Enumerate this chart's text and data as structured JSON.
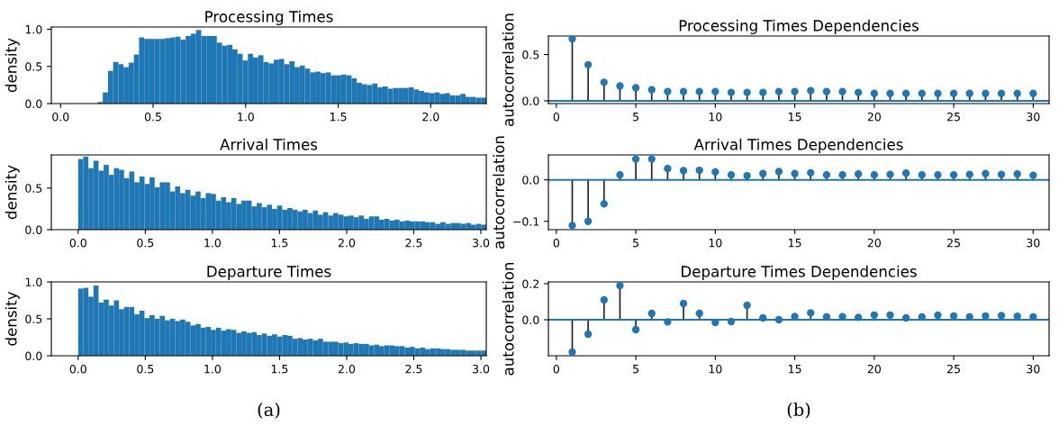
{
  "chart_data": [
    {
      "type": "histogram",
      "title": "Processing Times",
      "ylabel": "density",
      "color": "#1f77b4",
      "annotations": [
        "(a)"
      ],
      "bins": [
        0.2,
        0.228,
        0.256,
        0.284,
        0.312,
        0.34,
        0.368,
        0.396,
        0.424,
        0.452,
        0.48,
        0.508,
        0.536,
        0.564,
        0.592,
        0.62,
        0.648,
        0.676,
        0.704,
        0.732,
        0.76,
        0.788,
        0.816,
        0.844,
        0.872,
        0.9,
        0.928,
        0.956,
        0.984,
        1.012,
        1.04,
        1.068,
        1.096,
        1.124,
        1.152,
        1.18,
        1.208,
        1.236,
        1.264,
        1.292,
        1.32,
        1.348,
        1.376,
        1.404,
        1.432,
        1.46,
        1.488,
        1.516,
        1.544,
        1.572,
        1.6,
        1.628,
        1.656,
        1.684,
        1.712,
        1.74,
        1.768,
        1.796,
        1.824,
        1.852,
        1.88,
        1.908,
        1.936,
        1.964,
        1.992,
        2.02,
        2.048,
        2.076,
        2.104,
        2.132,
        2.16,
        2.188,
        2.216,
        2.244,
        2.272,
        2.3
      ],
      "values": [
        0.02,
        0.15,
        0.44,
        0.56,
        0.53,
        0.49,
        0.55,
        0.66,
        0.89,
        0.87,
        0.87,
        0.87,
        0.87,
        0.88,
        0.89,
        0.9,
        0.86,
        0.91,
        0.94,
        0.99,
        0.91,
        0.91,
        0.91,
        0.82,
        0.78,
        0.79,
        0.73,
        0.67,
        0.58,
        0.67,
        0.62,
        0.65,
        0.56,
        0.54,
        0.59,
        0.6,
        0.53,
        0.57,
        0.49,
        0.51,
        0.47,
        0.42,
        0.43,
        0.41,
        0.42,
        0.38,
        0.38,
        0.39,
        0.38,
        0.34,
        0.28,
        0.26,
        0.25,
        0.27,
        0.22,
        0.23,
        0.2,
        0.21,
        0.21,
        0.21,
        0.22,
        0.19,
        0.17,
        0.15,
        0.14,
        0.15,
        0.13,
        0.14,
        0.11,
        0.11,
        0.13,
        0.09,
        0.09,
        0.08,
        0.08
      ],
      "xlim": [
        -0.05,
        2.3
      ],
      "ylim": [
        0,
        1.03
      ],
      "xticks": [
        {
          "value": 0,
          "label": "0.0"
        },
        {
          "value": 0.5,
          "label": "0.5"
        },
        {
          "value": 1,
          "label": "1.0"
        },
        {
          "value": 1.5,
          "label": "1.5"
        },
        {
          "value": 2,
          "label": "2.0"
        }
      ],
      "yticks": [
        {
          "value": 0,
          "label": "0.0"
        },
        {
          "value": 0.5,
          "label": "0.5"
        },
        {
          "value": 1,
          "label": "1.0"
        }
      ]
    },
    {
      "type": "histogram",
      "title": "Arrival Times",
      "ylabel": "density",
      "color": "#1f77b4",
      "bins": [
        0,
        0.038,
        0.076,
        0.114,
        0.152,
        0.19,
        0.228,
        0.266,
        0.304,
        0.342,
        0.38,
        0.418,
        0.456,
        0.494,
        0.532,
        0.57,
        0.608,
        0.646,
        0.684,
        0.722,
        0.76,
        0.798,
        0.836,
        0.874,
        0.912,
        0.95,
        0.988,
        1.026,
        1.064,
        1.102,
        1.14,
        1.178,
        1.216,
        1.254,
        1.292,
        1.33,
        1.368,
        1.406,
        1.444,
        1.482,
        1.52,
        1.558,
        1.596,
        1.634,
        1.672,
        1.71,
        1.748,
        1.786,
        1.824,
        1.862,
        1.9,
        1.938,
        1.976,
        2.014,
        2.052,
        2.09,
        2.128,
        2.166,
        2.204,
        2.242,
        2.28,
        2.318,
        2.356,
        2.394,
        2.432,
        2.47,
        2.508,
        2.546,
        2.584,
        2.622,
        2.66,
        2.698,
        2.736,
        2.774,
        2.812,
        2.85,
        2.888,
        2.926,
        2.964,
        3.002,
        3.04
      ],
      "values": [
        0.85,
        0.88,
        0.74,
        0.83,
        0.71,
        0.78,
        0.66,
        0.74,
        0.72,
        0.62,
        0.7,
        0.57,
        0.64,
        0.55,
        0.63,
        0.51,
        0.57,
        0.57,
        0.46,
        0.52,
        0.44,
        0.48,
        0.41,
        0.46,
        0.38,
        0.44,
        0.43,
        0.35,
        0.39,
        0.33,
        0.38,
        0.31,
        0.35,
        0.35,
        0.28,
        0.32,
        0.27,
        0.3,
        0.25,
        0.29,
        0.24,
        0.26,
        0.24,
        0.22,
        0.24,
        0.2,
        0.23,
        0.18,
        0.21,
        0.17,
        0.2,
        0.18,
        0.16,
        0.17,
        0.15,
        0.17,
        0.13,
        0.16,
        0.16,
        0.12,
        0.13,
        0.11,
        0.12,
        0.1,
        0.11,
        0.1,
        0.1,
        0.1,
        0.09,
        0.09,
        0.07,
        0.09,
        0.07,
        0.08,
        0.08,
        0.07,
        0.08,
        0.06,
        0.07,
        0.06
      ],
      "xlim": [
        -0.2,
        3.04
      ],
      "ylim": [
        0,
        0.9
      ],
      "xticks": [
        {
          "value": 0,
          "label": "0.0"
        },
        {
          "value": 0.5,
          "label": "0.5"
        },
        {
          "value": 1,
          "label": "1.0"
        },
        {
          "value": 1.5,
          "label": "1.5"
        },
        {
          "value": 2,
          "label": "2.0"
        },
        {
          "value": 2.5,
          "label": "2.5"
        },
        {
          "value": 3,
          "label": "3.0"
        }
      ],
      "yticks": [
        {
          "value": 0,
          "label": "0.0"
        },
        {
          "value": 0.5,
          "label": "0.5"
        }
      ]
    },
    {
      "type": "histogram",
      "title": "Departure Times",
      "ylabel": "density",
      "color": "#1f77b4",
      "bins": [
        0,
        0.038,
        0.076,
        0.114,
        0.152,
        0.19,
        0.228,
        0.266,
        0.304,
        0.342,
        0.38,
        0.418,
        0.456,
        0.494,
        0.532,
        0.57,
        0.608,
        0.646,
        0.684,
        0.722,
        0.76,
        0.798,
        0.836,
        0.874,
        0.912,
        0.95,
        0.988,
        1.026,
        1.064,
        1.102,
        1.14,
        1.178,
        1.216,
        1.254,
        1.292,
        1.33,
        1.368,
        1.406,
        1.444,
        1.482,
        1.52,
        1.558,
        1.596,
        1.634,
        1.672,
        1.71,
        1.748,
        1.786,
        1.824,
        1.862,
        1.9,
        1.938,
        1.976,
        2.014,
        2.052,
        2.09,
        2.128,
        2.166,
        2.204,
        2.242,
        2.28,
        2.318,
        2.356,
        2.394,
        2.432,
        2.47,
        2.508,
        2.546,
        2.584,
        2.622,
        2.66,
        2.698,
        2.736,
        2.774,
        2.812,
        2.85,
        2.888,
        2.926,
        2.964,
        3.002,
        3.04
      ],
      "values": [
        0.91,
        0.92,
        0.8,
        0.95,
        0.72,
        0.76,
        0.68,
        0.75,
        0.63,
        0.66,
        0.66,
        0.56,
        0.61,
        0.51,
        0.55,
        0.5,
        0.54,
        0.48,
        0.5,
        0.47,
        0.49,
        0.46,
        0.41,
        0.43,
        0.38,
        0.39,
        0.35,
        0.38,
        0.34,
        0.36,
        0.35,
        0.31,
        0.33,
        0.31,
        0.32,
        0.28,
        0.3,
        0.27,
        0.29,
        0.26,
        0.28,
        0.27,
        0.23,
        0.24,
        0.22,
        0.23,
        0.21,
        0.23,
        0.19,
        0.19,
        0.19,
        0.17,
        0.18,
        0.16,
        0.17,
        0.16,
        0.16,
        0.14,
        0.15,
        0.13,
        0.14,
        0.14,
        0.13,
        0.13,
        0.11,
        0.12,
        0.1,
        0.11,
        0.09,
        0.1,
        0.1,
        0.09,
        0.09,
        0.08,
        0.08,
        0.08,
        0.07,
        0.07,
        0.07,
        0.07
      ],
      "xlim": [
        -0.2,
        3.04
      ],
      "ylim": [
        0,
        1.0
      ],
      "xticks": [
        {
          "value": 0,
          "label": "0.0"
        },
        {
          "value": 0.5,
          "label": "0.5"
        },
        {
          "value": 1,
          "label": "1.0"
        },
        {
          "value": 1.5,
          "label": "1.5"
        },
        {
          "value": 2,
          "label": "2.0"
        },
        {
          "value": 2.5,
          "label": "2.5"
        },
        {
          "value": 3,
          "label": "3.0"
        }
      ],
      "yticks": [
        {
          "value": 0,
          "label": "0.0"
        },
        {
          "value": 0.5,
          "label": "0.5"
        },
        {
          "value": 1,
          "label": "1.0"
        }
      ]
    },
    {
      "type": "lollipop",
      "title": "Processing Times Dependencies",
      "ylabel": "autocorrelation",
      "annotations": [
        "(b)"
      ],
      "marker": "circle",
      "ref_lines": [
        {
          "axis": "y",
          "value": 0,
          "color": "#1f77b4"
        }
      ],
      "x": [
        1,
        2,
        3,
        4,
        5,
        6,
        7,
        8,
        9,
        10,
        11,
        12,
        13,
        14,
        15,
        16,
        17,
        18,
        19,
        20,
        21,
        22,
        23,
        24,
        25,
        26,
        27,
        28,
        29,
        30
      ],
      "series": [
        {
          "color": "#1f77b4",
          "values": [
            0.67,
            0.39,
            0.2,
            0.16,
            0.14,
            0.12,
            0.1,
            0.1,
            0.1,
            0.1,
            0.09,
            0.09,
            0.09,
            0.1,
            0.1,
            0.11,
            0.1,
            0.1,
            0.09,
            0.08,
            0.08,
            0.08,
            0.08,
            0.08,
            0.08,
            0.08,
            0.08,
            0.08,
            0.08,
            0.08
          ]
        }
      ],
      "xlim": [
        -0.5,
        31
      ],
      "ylim": [
        -0.03,
        0.7
      ],
      "xticks": [
        0,
        5,
        10,
        15,
        20,
        25,
        30
      ],
      "yticks": [
        {
          "value": 0,
          "label": "0.0"
        },
        0.5
      ]
    },
    {
      "type": "lollipop",
      "title": "Arrival Times Dependencies",
      "ylabel": "autocorrelation",
      "marker": "circle",
      "ref_lines": [
        {
          "axis": "y",
          "value": 0,
          "color": "#1f77b4"
        }
      ],
      "x": [
        1,
        2,
        3,
        4,
        5,
        6,
        7,
        8,
        9,
        10,
        11,
        12,
        13,
        14,
        15,
        16,
        17,
        18,
        19,
        20,
        21,
        22,
        23,
        24,
        25,
        26,
        27,
        28,
        29,
        30
      ],
      "series": [
        {
          "color": "#1f77b4",
          "values": [
            -0.11,
            -0.1,
            -0.058,
            0.012,
            0.05,
            0.05,
            0.027,
            0.022,
            0.023,
            0.019,
            0.012,
            0.01,
            0.015,
            0.02,
            0.015,
            0.017,
            0.012,
            0.012,
            0.014,
            0.012,
            0.013,
            0.016,
            0.012,
            0.012,
            0.012,
            0.013,
            0.015,
            0.013,
            0.014,
            0.011
          ]
        }
      ],
      "xlim": [
        -0.5,
        31
      ],
      "ylim": [
        -0.12,
        0.06
      ],
      "xticks": [
        0,
        5,
        10,
        15,
        20,
        25,
        30
      ],
      "yticks": [
        {
          "value": -0.1,
          "label": "−0.1"
        },
        {
          "value": 0,
          "label": "0.0"
        }
      ]
    },
    {
      "type": "lollipop",
      "title": "Departure Times Dependencies",
      "ylabel": "autocorrelation",
      "marker": "circle",
      "ref_lines": [
        {
          "axis": "y",
          "value": 0,
          "color": "#1f77b4"
        }
      ],
      "x": [
        1,
        2,
        3,
        4,
        5,
        6,
        7,
        8,
        9,
        10,
        11,
        12,
        13,
        14,
        15,
        16,
        17,
        18,
        19,
        20,
        21,
        22,
        23,
        24,
        25,
        26,
        27,
        28,
        29,
        30
      ],
      "series": [
        {
          "color": "#1f77b4",
          "values": [
            -0.18,
            -0.08,
            0.11,
            0.19,
            -0.055,
            0.035,
            -0.012,
            0.09,
            0.035,
            -0.015,
            -0.01,
            0.08,
            0.01,
            0.0,
            0.018,
            0.038,
            0.016,
            0.017,
            0.013,
            0.026,
            0.026,
            0.01,
            0.015,
            0.025,
            0.021,
            0.016,
            0.021,
            0.023,
            0.019,
            0.016
          ]
        }
      ],
      "xlim": [
        -0.5,
        31
      ],
      "ylim": [
        -0.2,
        0.21
      ],
      "xticks": [
        0,
        5,
        10,
        15,
        20,
        25,
        30
      ],
      "yticks": [
        {
          "value": 0,
          "label": "0.0"
        },
        0.2
      ]
    }
  ]
}
